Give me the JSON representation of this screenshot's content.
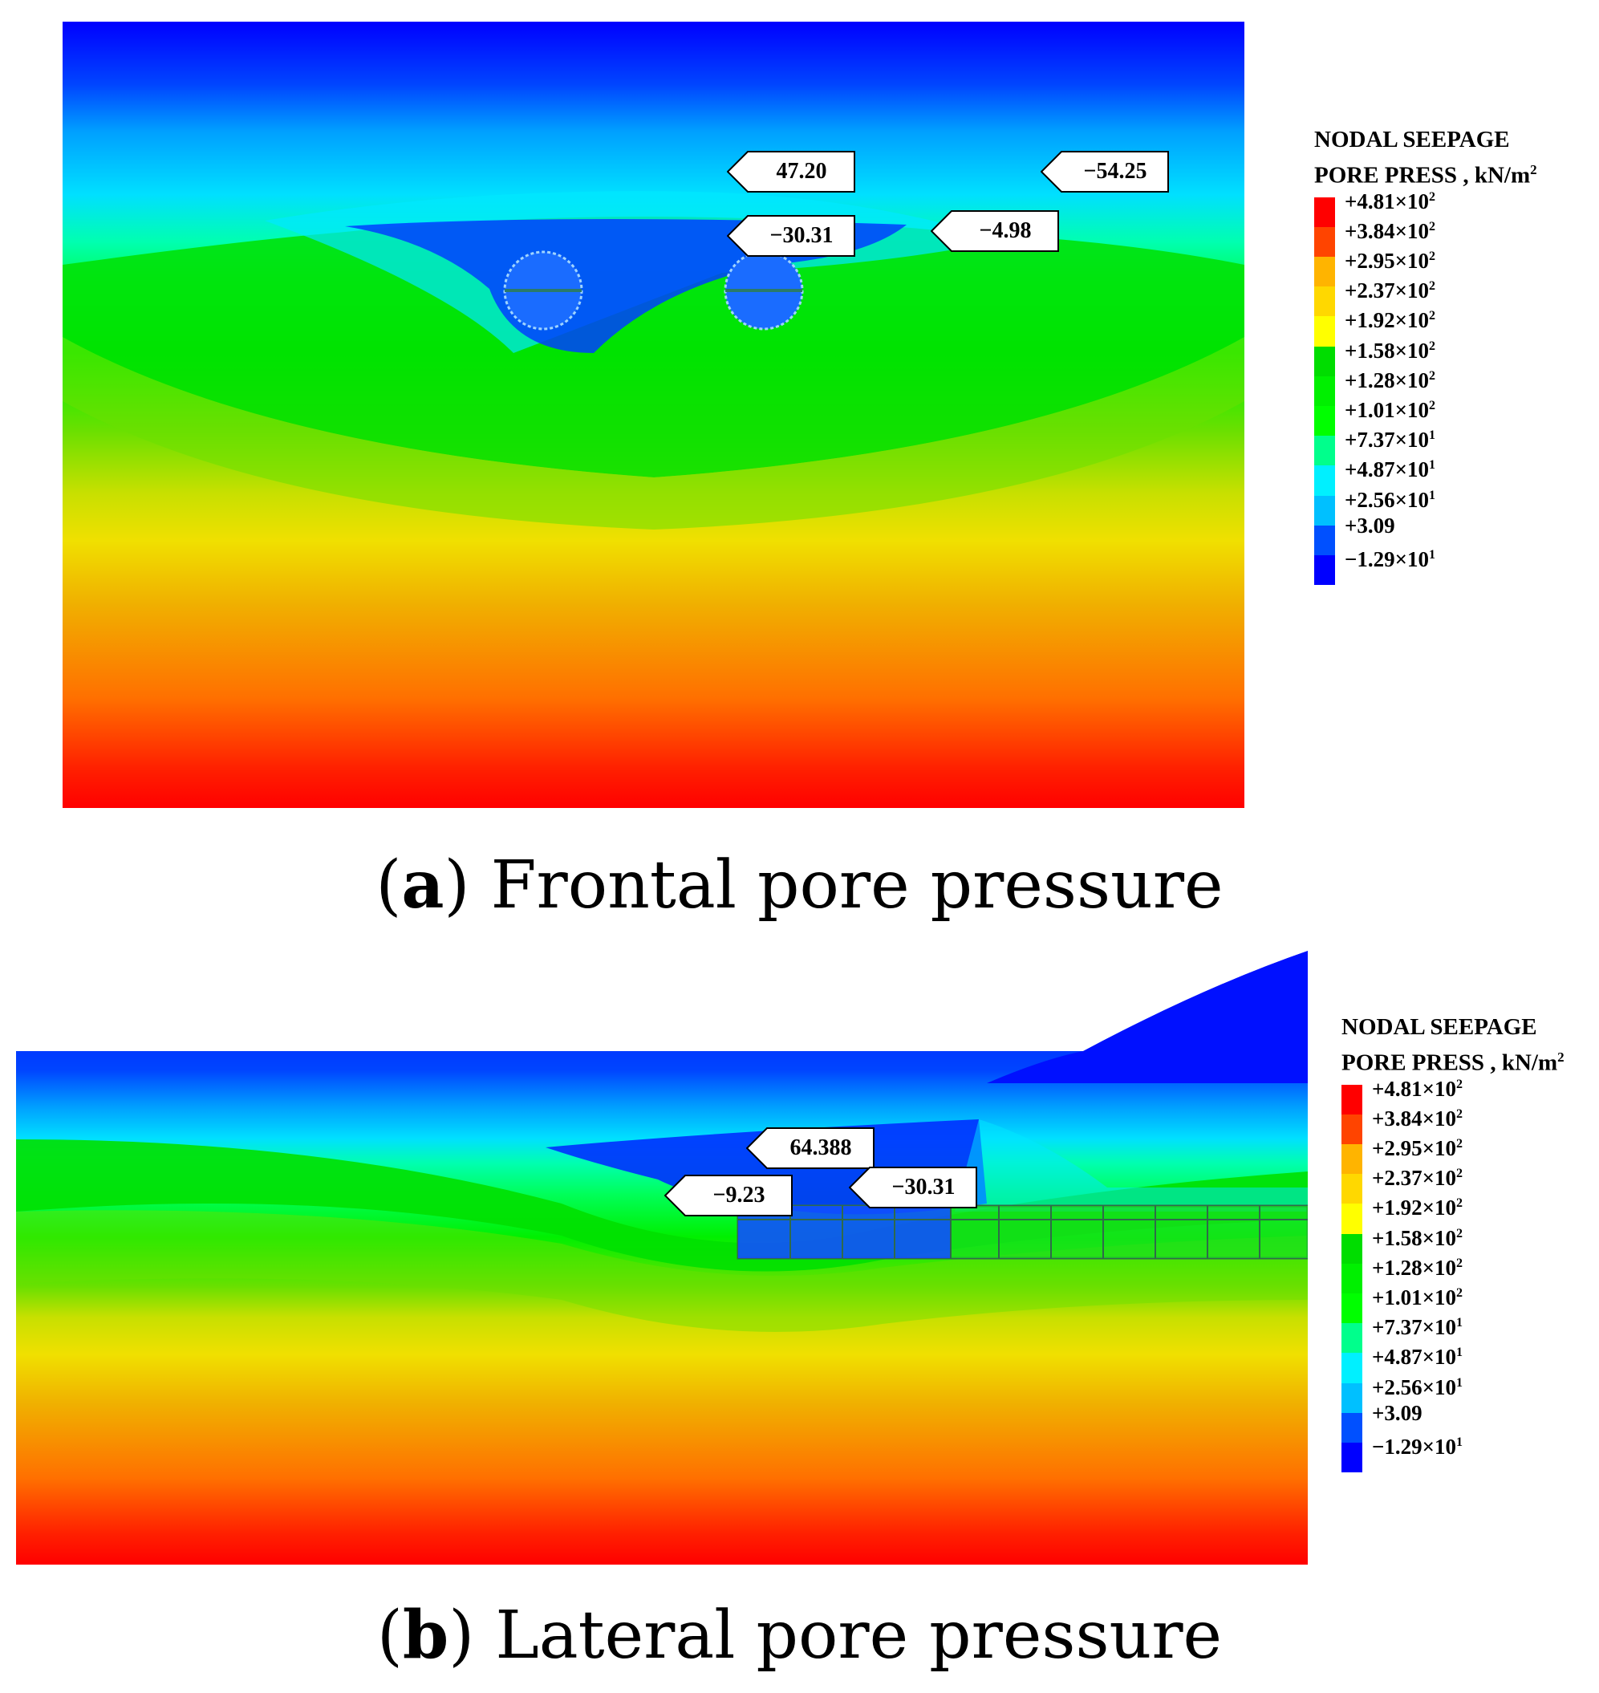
{
  "colorscale": [
    "#0000ff",
    "#0045ff",
    "#00a0ff",
    "#00e0ff",
    "#00ffb0",
    "#00ff5a",
    "#00f000",
    "#6ae000",
    "#c8e000",
    "#f0e000",
    "#f0b000",
    "#ff7000",
    "#ff2000",
    "#ff0000"
  ],
  "legend": {
    "title_line1": "NODAL SEEPAGE",
    "title_line2": "PORE PRESS , kN/m",
    "title_unit_exp": "2",
    "swatch_colors": [
      "#ff0000",
      "#ff4400",
      "#ffb400",
      "#ffd800",
      "#ffff00",
      "#00dd00",
      "#00f000",
      "#00ff00",
      "#00ff8c",
      "#00f0ff",
      "#00c0ff",
      "#0050ff",
      "#0000ff"
    ],
    "ticks": [
      {
        "mantissa": "+4.81×10",
        "exp": "2"
      },
      {
        "mantissa": "+3.84×10",
        "exp": "2"
      },
      {
        "mantissa": "+2.95×10",
        "exp": "2"
      },
      {
        "mantissa": "+2.37×10",
        "exp": "2"
      },
      {
        "mantissa": "+1.92×10",
        "exp": "2"
      },
      {
        "mantissa": "+1.58×10",
        "exp": "2"
      },
      {
        "mantissa": "+1.28×10",
        "exp": "2"
      },
      {
        "mantissa": "+1.01×10",
        "exp": "2"
      },
      {
        "mantissa": "+7.37×10",
        "exp": "1"
      },
      {
        "mantissa": "+4.87×10",
        "exp": "1"
      },
      {
        "mantissa": "+2.56×10",
        "exp": "1"
      },
      {
        "mantissa": "+3.09",
        "exp": ""
      },
      {
        "mantissa": "−1.29×10",
        "exp": "1"
      }
    ]
  },
  "panel_a": {
    "caption_letter": "a",
    "caption_text": " Frontal pore pressure",
    "labels": [
      "47.20",
      "−54.25",
      "−30.31",
      "−4.98"
    ]
  },
  "panel_b": {
    "caption_letter": "b",
    "caption_text": " Lateral pore pressure",
    "labels": [
      "64.388",
      "−30.31",
      "−9.23"
    ]
  }
}
